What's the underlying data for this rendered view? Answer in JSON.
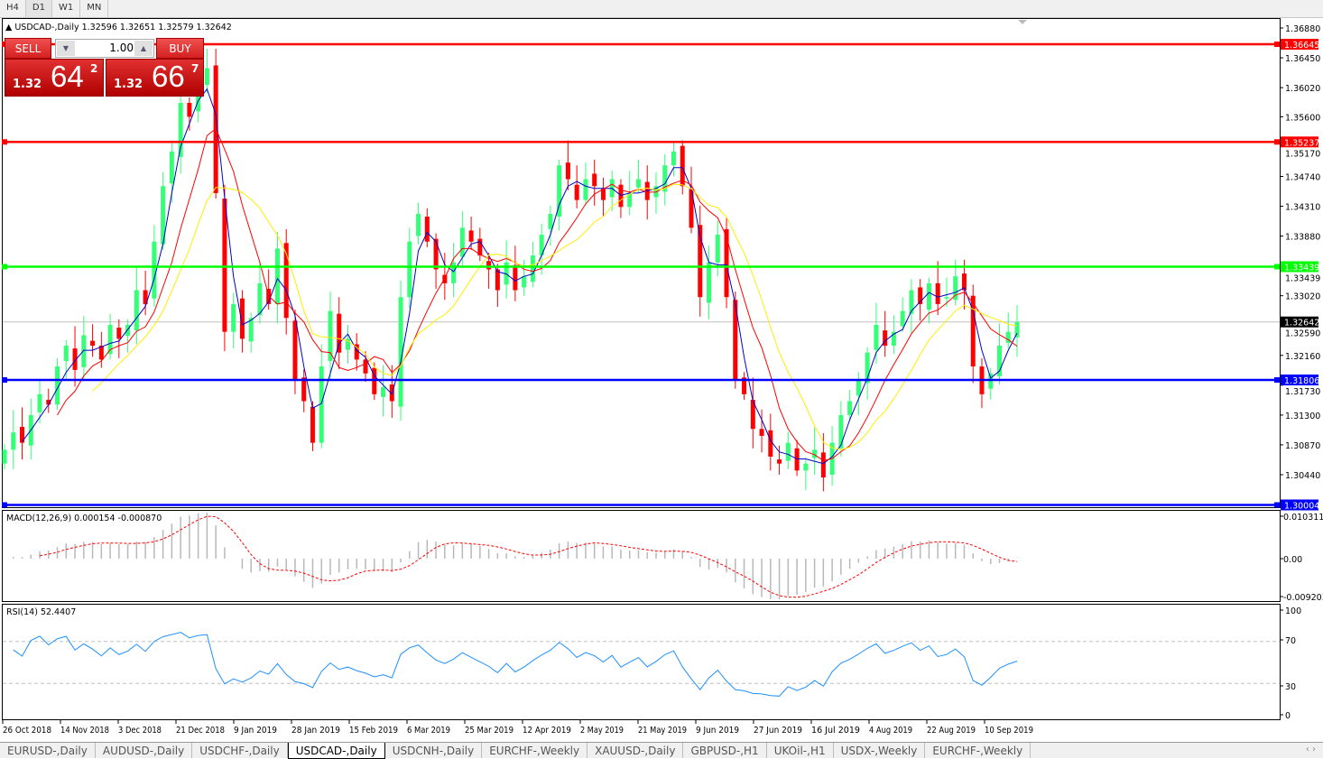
{
  "toolbar": {
    "timeframes": [
      "H4",
      "D1",
      "W1",
      "MN"
    ],
    "active": "D1"
  },
  "chart_title": "USDCAD-,Daily  1.32596 1.32651 1.32579 1.32642",
  "trade_panel": {
    "sell_label": "SELL",
    "buy_label": "BUY",
    "lot": "1.00",
    "sell_prefix": "1.32",
    "sell_big": "64",
    "sell_sup": "2",
    "buy_prefix": "1.32",
    "buy_big": "66",
    "buy_sup": "7"
  },
  "colors": {
    "bull": "#33ff77",
    "bear": "#ff0000",
    "ma_fast": "#0000cc",
    "ma_mid": "#ff0000",
    "ma_slow": "#ffee00",
    "rsi": "#1e90ff"
  },
  "horizontal_lines": [
    {
      "price": "1.36645",
      "color": "#ff0000"
    },
    {
      "price": "1.35237",
      "color": "#ff0000"
    },
    {
      "price": "1.33439",
      "color": "#00ff00"
    },
    {
      "price": "1.31806",
      "color": "#0000ff"
    },
    {
      "price": "1.30004",
      "color": "#0000ff"
    }
  ],
  "current_price": "1.32642",
  "chart_data": {
    "type": "candlestick",
    "symbol": "USDCAD-",
    "timeframe": "Daily",
    "price_ticks": [
      "1.36880",
      "1.36450",
      "1.36020",
      "1.35600",
      "1.35170",
      "1.34740",
      "1.34310",
      "1.33880",
      "1.33439",
      "1.33020",
      "1.32590",
      "1.32160",
      "1.31730",
      "1.31300",
      "1.30870",
      "1.30440"
    ],
    "ylim": [
      1.2998,
      1.37
    ],
    "date_ticks": [
      "26 Oct 2018",
      "14 Nov 2018",
      "3 Dec 2018",
      "21 Dec 2018",
      "9 Jan 2019",
      "28 Jan 2019",
      "15 Feb 2019",
      "6 Mar 2019",
      "25 Mar 2019",
      "12 Apr 2019",
      "2 May 2019",
      "21 May 2019",
      "9 Jun 2019",
      "27 Jun 2019",
      "16 Jul 2019",
      "4 Aug 2019",
      "22 Aug 2019",
      "10 Sep 2019"
    ],
    "closes": [
      1.308,
      1.3105,
      1.309,
      1.313,
      1.316,
      1.3145,
      1.32,
      1.323,
      1.3195,
      1.3245,
      1.323,
      1.321,
      1.326,
      1.324,
      1.326,
      1.331,
      1.329,
      1.338,
      1.346,
      1.351,
      1.358,
      1.356,
      1.361,
      1.363,
      1.345,
      1.325,
      1.329,
      1.324,
      1.327,
      1.332,
      1.329,
      1.337,
      1.327,
      1.318,
      1.315,
      1.309,
      1.32,
      1.328,
      1.322,
      1.324,
      1.321,
      1.319,
      1.316,
      1.317,
      1.315,
      1.33,
      1.338,
      1.342,
      1.338,
      1.334,
      1.332,
      1.335,
      1.34,
      1.338,
      1.336,
      1.334,
      1.331,
      1.335,
      1.331,
      1.333,
      1.336,
      1.339,
      1.342,
      1.349,
      1.347,
      1.344,
      1.347,
      1.346,
      1.344,
      1.347,
      1.343,
      1.345,
      1.347,
      1.344,
      1.346,
      1.349,
      1.351,
      1.346,
      1.34,
      1.33,
      1.335,
      1.339,
      1.33,
      1.318,
      1.316,
      1.311,
      1.31,
      1.307,
      1.306,
      1.309,
      1.305,
      1.306,
      1.308,
      1.304,
      1.309,
      1.313,
      1.315,
      1.318,
      1.322,
      1.326,
      1.323,
      1.325,
      1.328,
      1.331,
      1.329,
      1.332,
      1.329,
      1.33,
      1.333,
      1.331,
      1.32,
      1.316,
      1.319,
      1.323,
      1.325,
      1.32642
    ],
    "macd": {
      "label": "MACD(12,26,9) 0.000154 -0.000870",
      "ticks": [
        "0.010311",
        "0.00",
        "-0.009203"
      ],
      "range": [
        -0.009203,
        0.010311
      ]
    },
    "rsi": {
      "label": "RSI(14) 52.4407",
      "ticks": [
        "100",
        "70",
        "30",
        "0"
      ],
      "levels": [
        70,
        30
      ]
    }
  },
  "tabs": [
    "EURUSD-,Daily",
    "AUDUSD-,Daily",
    "USDCHF-,Daily",
    "USDCAD-,Daily",
    "USDCNH-,Daily",
    "EURCHF-,Weekly",
    "XAUUSD-,Daily",
    "GBPUSD-,H1",
    "UKOil-,H1",
    "USDX-,Weekly",
    "EURCHF-,Weekly"
  ],
  "active_tab": "USDCAD-,Daily"
}
